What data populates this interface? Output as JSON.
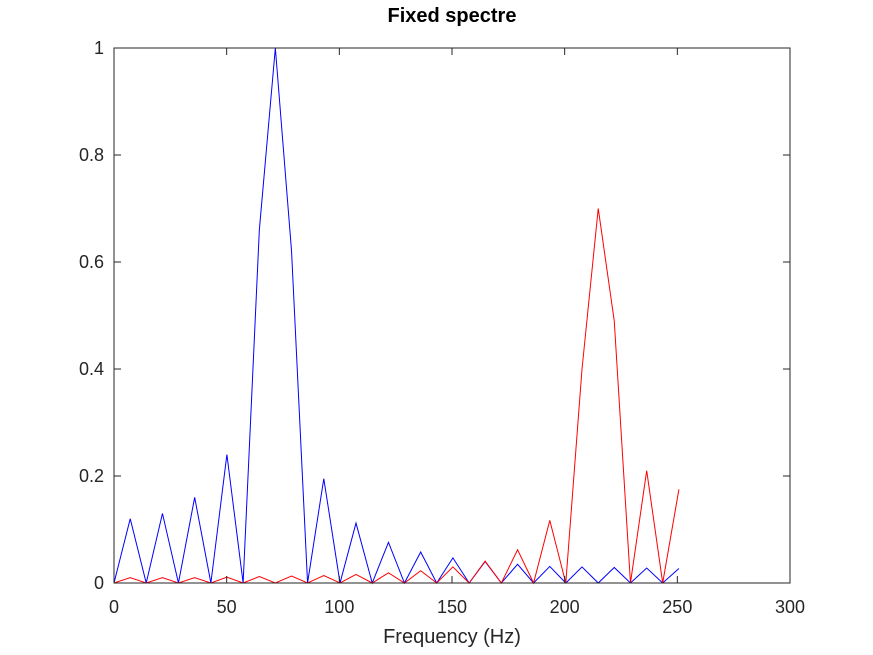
{
  "chart_data": {
    "type": "line",
    "title": "Fixed spectre",
    "xlabel": "Frequency (Hz)",
    "ylabel": "",
    "xlim": [
      0,
      300
    ],
    "ylim": [
      0,
      1
    ],
    "xticks": [
      0,
      50,
      100,
      150,
      200,
      250,
      300
    ],
    "yticks": [
      0,
      0.2,
      0.4,
      0.6,
      0.8,
      1
    ],
    "xtick_labels": [
      "0",
      "50",
      "100",
      "150",
      "200",
      "250",
      "300"
    ],
    "ytick_labels": [
      "0",
      "0.2",
      "0.4",
      "0.6",
      "0.8",
      "1"
    ],
    "grid": false,
    "legend": "none",
    "series": [
      {
        "color": "#0000ff",
        "x": [
          0,
          7.2,
          14.3,
          21.5,
          28.6,
          35.8,
          43.0,
          50.1,
          57.3,
          64.5,
          71.6,
          78.8,
          85.9,
          93.1,
          100.3,
          107.4,
          114.6,
          121.8,
          128.9,
          136.1,
          143.2,
          150.4,
          157.6,
          164.7,
          171.9,
          179.1,
          186.2,
          193.4,
          200.5,
          207.7,
          214.9,
          222.0,
          229.2,
          236.4,
          243.5,
          250.7
        ],
        "y": [
          0,
          0.12,
          0,
          0.13,
          0,
          0.16,
          0,
          0.24,
          0,
          0.66,
          1.0,
          0.62,
          0,
          0.195,
          0,
          0.112,
          0,
          0.076,
          0,
          0.058,
          0,
          0.047,
          0,
          0.04,
          0,
          0.035,
          0,
          0.031,
          0,
          0.03,
          0,
          0.029,
          0,
          0.028,
          0,
          0.027
        ]
      },
      {
        "color": "#ff0000",
        "x": [
          0,
          7.2,
          14.3,
          21.5,
          28.6,
          35.8,
          43.0,
          50.1,
          57.3,
          64.5,
          71.6,
          78.8,
          85.9,
          93.1,
          100.3,
          107.4,
          114.6,
          121.8,
          128.9,
          136.1,
          143.2,
          150.4,
          157.6,
          164.7,
          171.9,
          179.1,
          186.2,
          193.4,
          200.5,
          207.7,
          214.9,
          222.0,
          229.2,
          236.4,
          243.5,
          250.7
        ],
        "y": [
          0,
          0.01,
          0,
          0.01,
          0,
          0.01,
          0,
          0.011,
          0,
          0.012,
          0,
          0.013,
          0,
          0.014,
          0,
          0.016,
          0,
          0.019,
          0,
          0.023,
          0,
          0.03,
          0,
          0.041,
          0,
          0.062,
          0,
          0.117,
          0,
          0.4,
          0.7,
          0.49,
          0,
          0.21,
          0,
          0.175
        ]
      }
    ]
  }
}
